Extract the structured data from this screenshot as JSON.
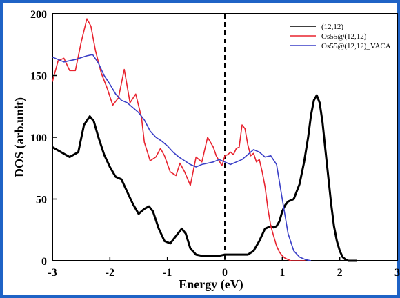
{
  "chart_data": {
    "type": "line",
    "title": "",
    "xlabel": "Energy (eV)",
    "ylabel": "DOS (arb.unit)",
    "xlim": [
      -3,
      3
    ],
    "ylim": [
      0,
      200
    ],
    "xticks": [
      "-3",
      "-2",
      "-1",
      "0",
      "1",
      "2",
      "3"
    ],
    "yticks": [
      "0",
      "50",
      "100",
      "150",
      "200"
    ],
    "grid": false,
    "legend_position": "top-right",
    "fermi_level_line": {
      "x": 0,
      "style": "dashed"
    },
    "series": [
      {
        "name": "(12,12)",
        "color": "#000000",
        "x": [
          -3.0,
          -2.85,
          -2.7,
          -2.55,
          -2.45,
          -2.35,
          -2.28,
          -2.2,
          -2.1,
          -2.0,
          -1.9,
          -1.8,
          -1.7,
          -1.6,
          -1.5,
          -1.4,
          -1.32,
          -1.25,
          -1.15,
          -1.05,
          -0.95,
          -0.85,
          -0.75,
          -0.68,
          -0.6,
          -0.5,
          -0.4,
          -0.3,
          -0.2,
          -0.1,
          0.0,
          0.1,
          0.2,
          0.3,
          0.4,
          0.5,
          0.6,
          0.7,
          0.8,
          0.85,
          0.9,
          0.95,
          1.0,
          1.05,
          1.1,
          1.2,
          1.3,
          1.38,
          1.45,
          1.5,
          1.55,
          1.6,
          1.65,
          1.7,
          1.75,
          1.8,
          1.85,
          1.9,
          1.95,
          2.0,
          2.05,
          2.1,
          2.15,
          2.2,
          2.3
        ],
        "y": [
          92,
          88,
          84,
          88,
          110,
          117,
          113,
          100,
          86,
          76,
          68,
          66,
          56,
          46,
          38,
          42,
          44,
          40,
          26,
          16,
          14,
          20,
          26,
          22,
          10,
          5,
          4,
          4,
          4,
          4,
          5,
          5,
          5,
          5,
          5,
          8,
          16,
          26,
          28,
          27,
          28,
          32,
          40,
          45,
          48,
          50,
          62,
          80,
          100,
          118,
          130,
          134,
          128,
          112,
          90,
          68,
          46,
          28,
          16,
          8,
          3,
          1,
          0,
          0,
          0
        ]
      },
      {
        "name": "Os55@(12,12)",
        "color": "#e8232f",
        "x": [
          -3.0,
          -2.9,
          -2.8,
          -2.7,
          -2.6,
          -2.5,
          -2.4,
          -2.33,
          -2.25,
          -2.15,
          -2.05,
          -1.95,
          -1.85,
          -1.75,
          -1.65,
          -1.55,
          -1.45,
          -1.4,
          -1.3,
          -1.2,
          -1.12,
          -1.05,
          -0.95,
          -0.85,
          -0.78,
          -0.7,
          -0.6,
          -0.5,
          -0.4,
          -0.3,
          -0.2,
          -0.15,
          -0.05,
          0.0,
          0.05,
          0.1,
          0.15,
          0.2,
          0.25,
          0.3,
          0.35,
          0.4,
          0.45,
          0.5,
          0.55,
          0.6,
          0.65,
          0.7,
          0.75,
          0.8,
          0.85,
          0.9,
          0.95,
          1.0,
          1.05,
          1.1,
          1.15,
          1.2,
          1.25,
          1.3,
          1.35,
          1.4
        ],
        "y": [
          145,
          162,
          164,
          154,
          154,
          177,
          196,
          190,
          170,
          152,
          140,
          126,
          132,
          155,
          128,
          135,
          116,
          96,
          81,
          84,
          91,
          85,
          72,
          69,
          79,
          72,
          61,
          84,
          80,
          100,
          92,
          85,
          77,
          85,
          86,
          88,
          86,
          91,
          92,
          110,
          107,
          94,
          85,
          87,
          80,
          82,
          72,
          60,
          42,
          28,
          20,
          12,
          7,
          4,
          2,
          1,
          0,
          0,
          0,
          0,
          0,
          0
        ],
        "note": "x mapped to data units"
      },
      {
        "name": "Os55@(12,12)_VACA",
        "color": "#3a3fc7",
        "x": [
          -3.0,
          -2.8,
          -2.6,
          -2.4,
          -2.3,
          -2.2,
          -2.1,
          -2.0,
          -1.9,
          -1.8,
          -1.7,
          -1.6,
          -1.5,
          -1.4,
          -1.3,
          -1.2,
          -1.1,
          -1.0,
          -0.9,
          -0.8,
          -0.7,
          -0.6,
          -0.5,
          -0.4,
          -0.3,
          -0.2,
          -0.1,
          0.0,
          0.1,
          0.2,
          0.3,
          0.4,
          0.5,
          0.6,
          0.7,
          0.8,
          0.9,
          1.0,
          1.1,
          1.2,
          1.3,
          1.4,
          1.5
        ],
        "y": [
          165,
          161,
          163,
          166,
          167,
          160,
          150,
          143,
          135,
          130,
          128,
          124,
          120,
          114,
          105,
          100,
          97,
          93,
          88,
          84,
          81,
          78,
          76,
          78,
          79,
          80,
          82,
          80,
          78,
          80,
          82,
          86,
          90,
          88,
          84,
          85,
          78,
          50,
          22,
          8,
          3,
          1,
          0
        ]
      }
    ]
  }
}
